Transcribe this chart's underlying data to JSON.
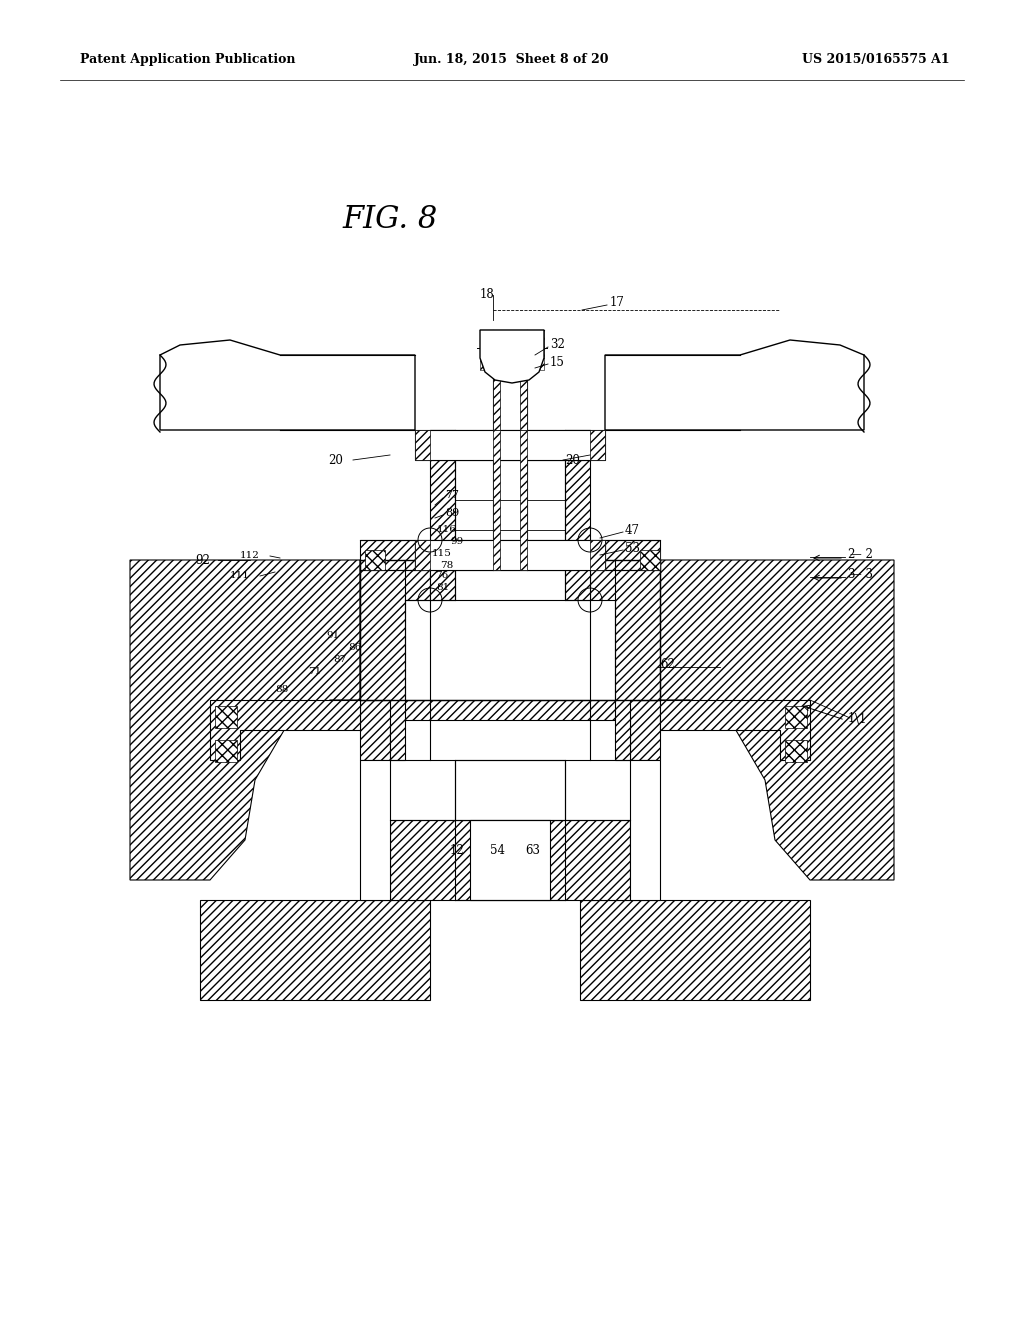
{
  "bg_color": "#ffffff",
  "line_color": "#000000",
  "title": "FIG. 8",
  "header_left": "Patent Application Publication",
  "header_center": "Jun. 18, 2015  Sheet 8 of 20",
  "header_right": "US 2015/0165575 A1"
}
